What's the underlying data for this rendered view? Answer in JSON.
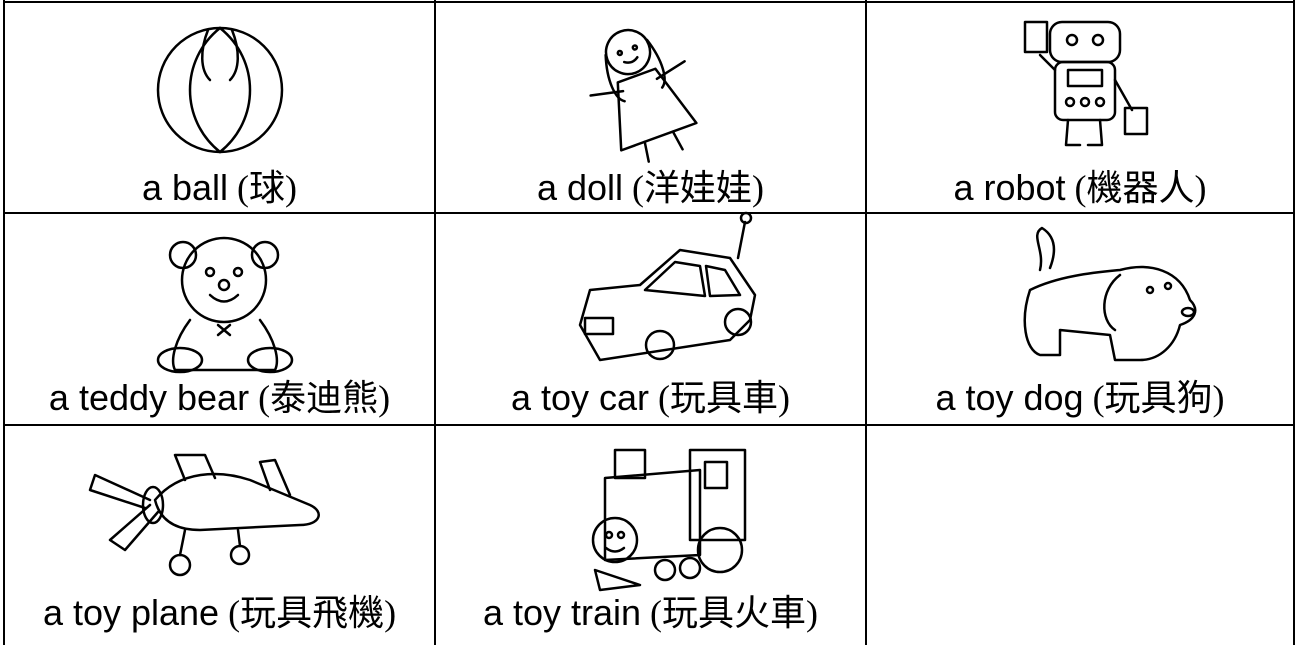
{
  "table": {
    "rows": [
      [
        {
          "name": "a ball",
          "chinese": "(球)"
        },
        {
          "name": "a doll",
          "chinese": "(洋娃娃)"
        },
        {
          "name": "a robot",
          "chinese": "(機器人)"
        }
      ],
      [
        {
          "name": "a teddy bear",
          "chinese": "(泰迪熊)"
        },
        {
          "name": "a toy car",
          "chinese": "(玩具車)"
        },
        {
          "name": "a toy dog",
          "chinese": "(玩具狗)"
        }
      ],
      [
        {
          "name": "a toy plane",
          "chinese": "(玩具飛機)"
        },
        {
          "name": "a toy train",
          "chinese": "(玩具火車)"
        }
      ]
    ]
  }
}
